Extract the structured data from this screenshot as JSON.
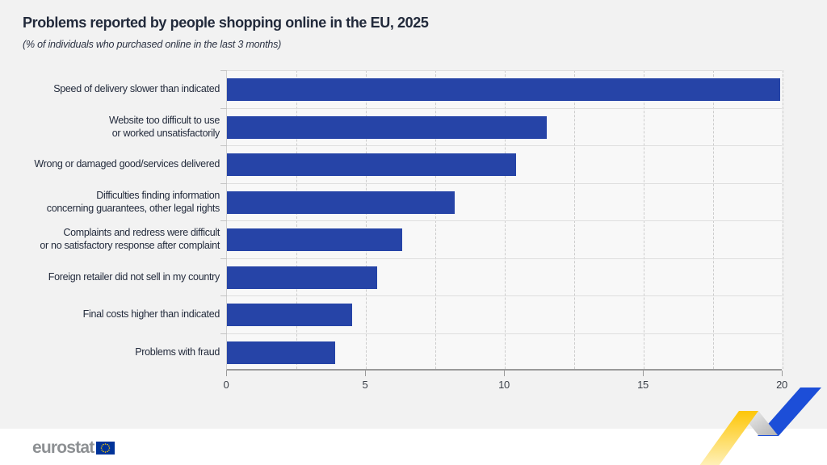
{
  "header": {
    "title": "Problems reported by people shopping online in the EU, 2025",
    "subtitle": "(% of individuals who purchased online in the last 3 months)"
  },
  "chart_data": {
    "type": "bar",
    "orientation": "horizontal",
    "title": "Problems reported by people shopping online in the EU, 2025",
    "subtitle": "(% of individuals who purchased online in the last 3 months)",
    "categories": [
      "Speed of delivery slower than indicated",
      "Website too difficult to use\nor worked unsatisfactorily",
      "Wrong or damaged good/services delivered",
      "Difficulties finding information\nconcerning guarantees, other legal rights",
      "Complaints and redress were difficult\nor no satisfactory response after complaint",
      "Foreign retailer did not sell in my country",
      "Final costs higher than indicated",
      "Problems with fraud"
    ],
    "values": [
      19.9,
      11.5,
      10.4,
      8.2,
      6.3,
      5.4,
      4.5,
      3.9
    ],
    "unit": "%",
    "xlim": [
      0,
      20
    ],
    "x_ticks": [
      "0",
      "5",
      "10",
      "15",
      "20"
    ],
    "x_tick_values": [
      0,
      5,
      10,
      15,
      20
    ],
    "gridline_step": 2.5,
    "grid": "vertical-dashed",
    "legend": "none",
    "bar_color": "#2644a7"
  },
  "footer": {
    "logo_text": "eurostat",
    "colors": {
      "logo_gray": "#8d9093",
      "flag_blue": "#003399",
      "star_yellow": "#ffcc00",
      "ribbon_yellow": "#fdc608",
      "ribbon_yellow_fade": "#fff3c4",
      "ribbon_blue": "#1c4ed8",
      "ribbon_fold_light": "#f4f4f4",
      "ribbon_fold_dark": "#b3b3b3"
    }
  }
}
